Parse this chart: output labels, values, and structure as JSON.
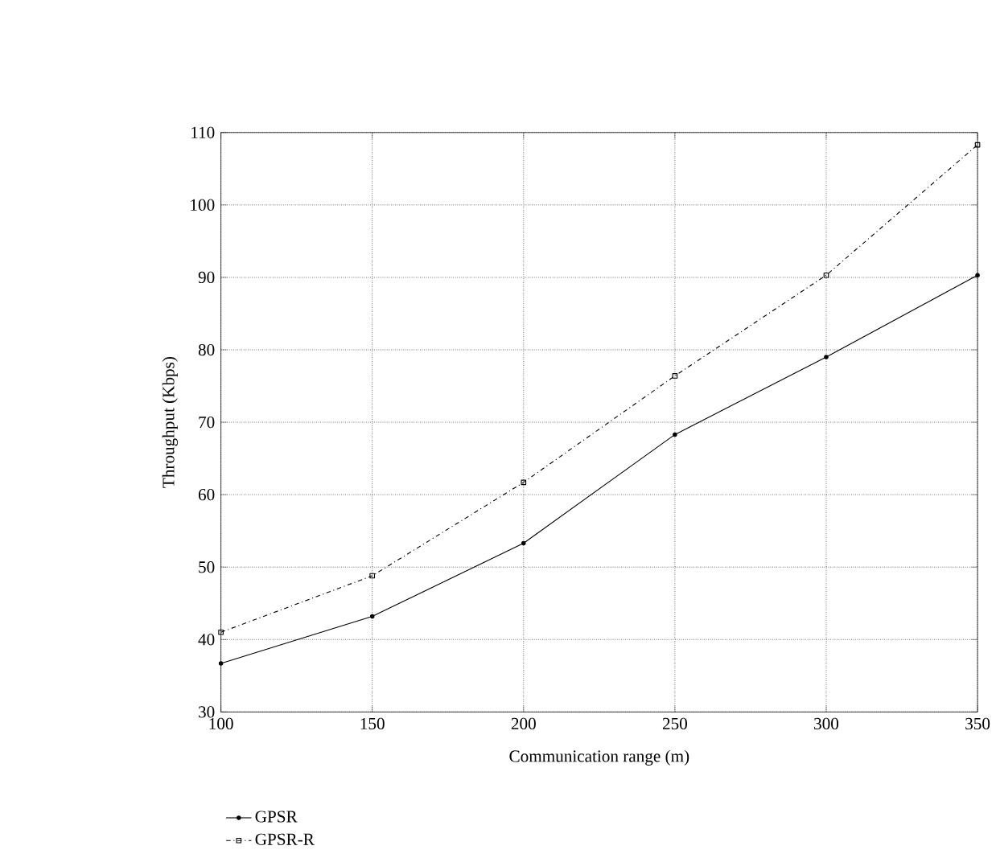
{
  "chart_data": {
    "type": "line",
    "xlabel": "Communication range (m)",
    "ylabel": "Throughput (Kbps)",
    "x": [
      100,
      150,
      200,
      250,
      300,
      350
    ],
    "series": [
      {
        "name": "GPSR",
        "color": "#000000",
        "marker": "circle",
        "line_style": "solid",
        "values": [
          36.7,
          43.2,
          53.3,
          68.3,
          79.0,
          90.3
        ]
      },
      {
        "name": "GPSR-R",
        "color": "#000000",
        "marker": "square",
        "line_style": "dashed",
        "values": [
          41.0,
          48.8,
          61.7,
          76.4,
          90.3,
          108.3
        ]
      }
    ],
    "xlim": [
      100,
      350
    ],
    "xticks": [
      100,
      150,
      200,
      250,
      300,
      350
    ],
    "ylim": [
      30,
      110
    ],
    "yticks": [
      30,
      40,
      50,
      60,
      70,
      80,
      90,
      100,
      110
    ],
    "grid": true,
    "legend": "bottom left"
  }
}
